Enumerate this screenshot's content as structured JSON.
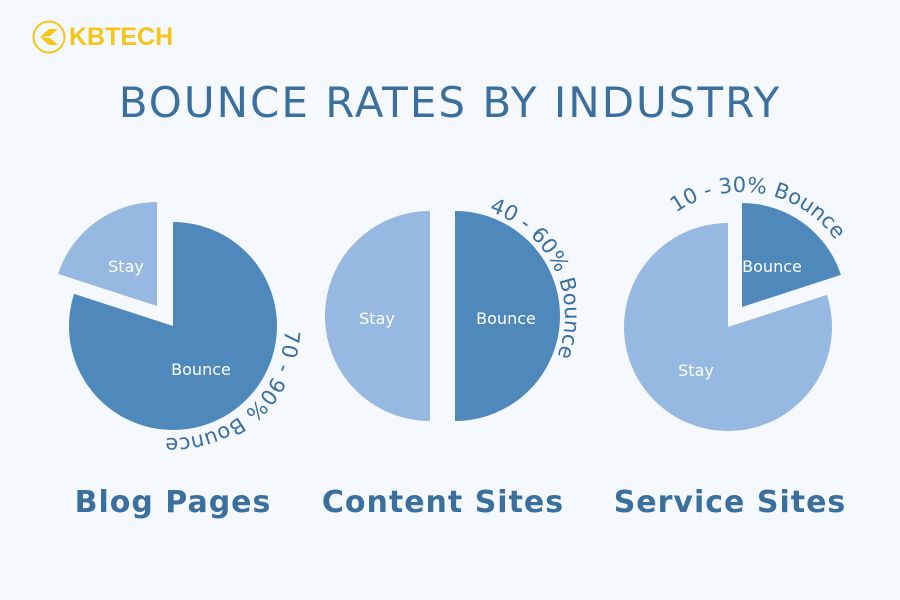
{
  "logo": {
    "text": "KBTECH",
    "color": "#f5c518"
  },
  "title": "BOUNCE RATES BY INDUSTRY",
  "colors": {
    "bounce": "#4f89bc",
    "stay": "#97b8e0",
    "text": "#3b6f9e",
    "background": "#f5f9fd"
  },
  "chart_data": [
    {
      "type": "pie",
      "title": "Blog Pages",
      "annotation": "70 - 90% Bounce",
      "slices": [
        {
          "label": "Bounce",
          "value": 80
        },
        {
          "label": "Stay",
          "value": 20
        }
      ]
    },
    {
      "type": "pie",
      "title": "Content Sites",
      "annotation": "40 - 60% Bounce",
      "slices": [
        {
          "label": "Bounce",
          "value": 50
        },
        {
          "label": "Stay",
          "value": 50
        }
      ]
    },
    {
      "type": "pie",
      "title": "Service Sites",
      "annotation": "10 - 30% Bounce",
      "slices": [
        {
          "label": "Bounce",
          "value": 20
        },
        {
          "label": "Stay",
          "value": 80
        }
      ]
    }
  ]
}
